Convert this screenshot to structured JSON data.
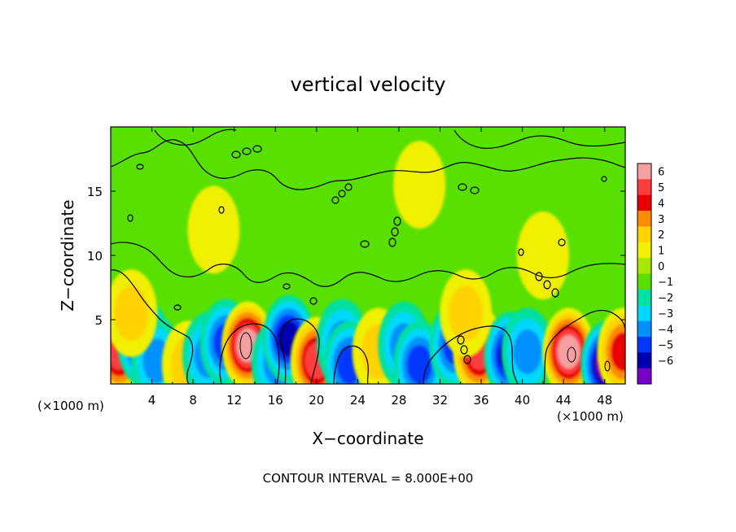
{
  "chart_data": {
    "type": "heatmap",
    "title": "vertical velocity",
    "xlabel": "X−coordinate",
    "ylabel": "Z−coordinate",
    "x_unit_left": "(×1000 m)",
    "x_unit_right": "(×1000 m)",
    "xlim": [
      0,
      50
    ],
    "ylim": [
      0,
      20
    ],
    "x_ticks": [
      4,
      8,
      12,
      16,
      20,
      24,
      28,
      32,
      36,
      40,
      44,
      48
    ],
    "x_tick_labels": [
      "4",
      "8",
      "12",
      "16",
      "20",
      "24",
      "28",
      "32",
      "36",
      "40",
      "44",
      "48"
    ],
    "y_ticks": [
      5,
      10,
      15
    ],
    "y_tick_labels": [
      "5",
      "10",
      "15"
    ],
    "footer": "CONTOUR INTERVAL = 8.000E+00",
    "colorbar": {
      "levels": [
        "6",
        "5",
        "4",
        "3",
        "2",
        "1",
        "0",
        "−1",
        "−2",
        "−3",
        "−4",
        "−5",
        "−6"
      ],
      "colors": [
        "#f4a0a0",
        "#ff3c3c",
        "#e80000",
        "#ff8c00",
        "#ffd200",
        "#f0f000",
        "#a8e800",
        "#58e000",
        "#00e0a0",
        "#00d8ff",
        "#0090ff",
        "#0038ff",
        "#0000b0",
        "#7800c8"
      ]
    },
    "cells": [
      {
        "x": 0.8,
        "z": 2.5,
        "v": 4.5
      },
      {
        "x": 3.2,
        "z": 3.2,
        "v": -4.5
      },
      {
        "x": 4.5,
        "z": 1.8,
        "v": -3.0
      },
      {
        "x": 7.5,
        "z": 1.5,
        "v": 1.5
      },
      {
        "x": 9.5,
        "z": 2.2,
        "v": -2.5
      },
      {
        "x": 11.2,
        "z": 3.2,
        "v": -3.5
      },
      {
        "x": 13.3,
        "z": 3.0,
        "v": 6.0
      },
      {
        "x": 16.2,
        "z": 1.6,
        "v": -3.0
      },
      {
        "x": 17.3,
        "z": 3.5,
        "v": -4.5
      },
      {
        "x": 20.0,
        "z": 1.8,
        "v": 4.5
      },
      {
        "x": 22.5,
        "z": 3.2,
        "v": -2.5
      },
      {
        "x": 23.2,
        "z": 1.5,
        "v": -4.0
      },
      {
        "x": 26.0,
        "z": 2.5,
        "v": 1.5
      },
      {
        "x": 28.5,
        "z": 3.0,
        "v": -2.5
      },
      {
        "x": 30.0,
        "z": 1.5,
        "v": -3.5
      },
      {
        "x": 33.5,
        "z": 3.0,
        "v": -4.0
      },
      {
        "x": 35.8,
        "z": 2.5,
        "v": 4.5
      },
      {
        "x": 38.8,
        "z": 2.2,
        "v": -5.0
      },
      {
        "x": 40.5,
        "z": 2.5,
        "v": -2.5
      },
      {
        "x": 44.5,
        "z": 2.5,
        "v": 5.5
      },
      {
        "x": 48.2,
        "z": 1.5,
        "v": -5.5
      },
      {
        "x": 49.8,
        "z": 2.5,
        "v": 4.0
      },
      {
        "x": 34.5,
        "z": 5.5,
        "v": 2.0
      },
      {
        "x": 2.0,
        "z": 5.5,
        "v": 1.5
      },
      {
        "x": 10.0,
        "z": 12.0,
        "v": 0.5
      },
      {
        "x": 30.0,
        "z": 15.5,
        "v": 0.5
      },
      {
        "x": 42.0,
        "z": 10.0,
        "v": 0.5
      }
    ]
  }
}
